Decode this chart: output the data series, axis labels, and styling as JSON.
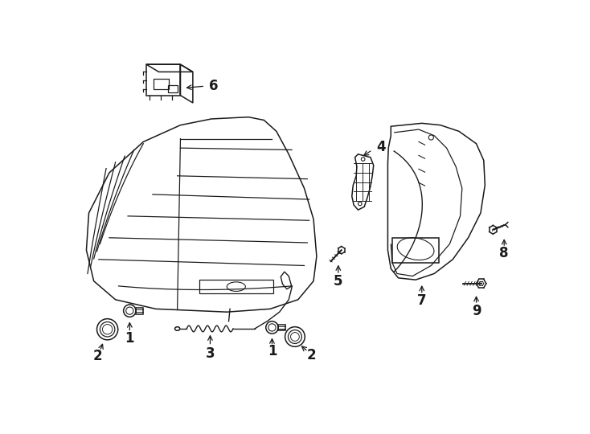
{
  "bg_color": "#ffffff",
  "lc": "#1a1a1a",
  "lw": 1.1,
  "fig_w": 7.34,
  "fig_h": 5.4,
  "dpi": 100,
  "components": {
    "6_label": "6",
    "4_label": "4",
    "1_label": "1",
    "2_label": "2",
    "3_label": "3",
    "5_label": "5",
    "7_label": "7",
    "8_label": "8",
    "9_label": "9"
  }
}
